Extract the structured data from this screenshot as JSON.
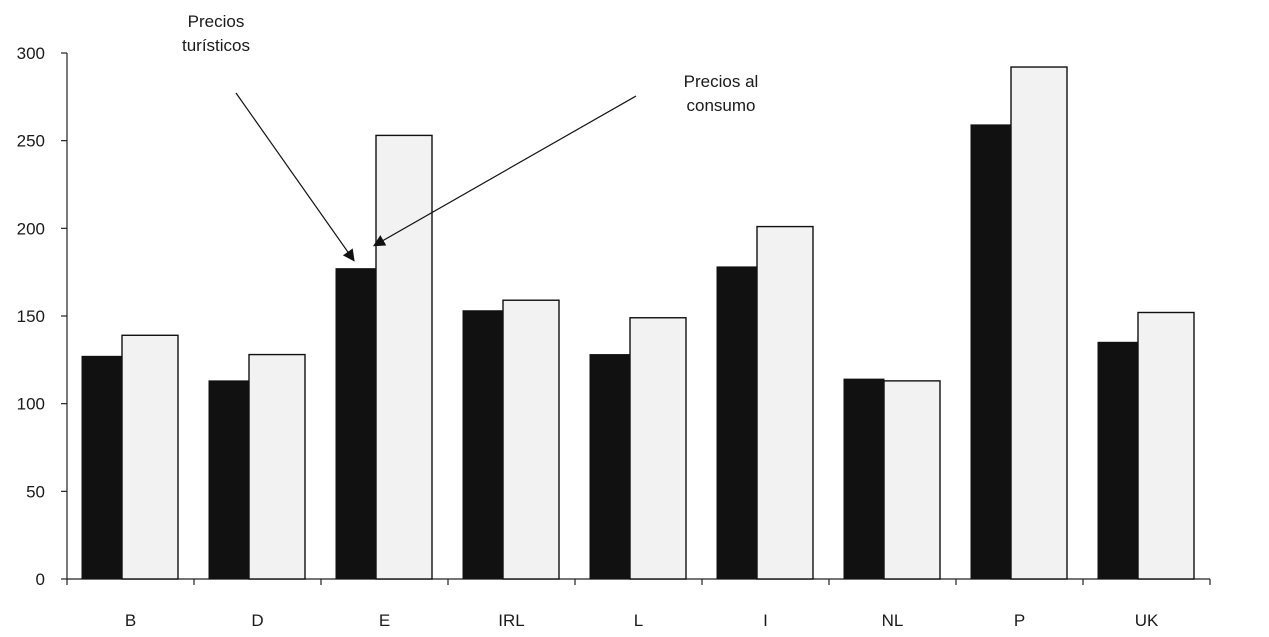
{
  "chart_data": {
    "type": "bar",
    "title": "",
    "xlabel": "",
    "ylabel": "",
    "ylim": [
      0,
      300
    ],
    "yticks": [
      0,
      50,
      100,
      150,
      200,
      250,
      300
    ],
    "categories": [
      "B",
      "D",
      "E",
      "IRL",
      "L",
      "I",
      "NL",
      "P",
      "UK"
    ],
    "series": [
      {
        "name": "Precios turísticos",
        "color": "#111111",
        "values": [
          127,
          113,
          177,
          153,
          128,
          178,
          114,
          259,
          135
        ]
      },
      {
        "name": "Precios al consumo",
        "color": "#f2f2f2",
        "values": [
          139,
          128,
          253,
          159,
          149,
          201,
          113,
          292,
          152
        ]
      }
    ],
    "grid": false,
    "legend": "none",
    "annotations": [
      {
        "text_lines": [
          "Precios",
          "turísticos"
        ],
        "points_to_category": "E",
        "points_to_series": 0
      },
      {
        "text_lines": [
          "Precios al",
          "consumo"
        ],
        "points_to_category": "E",
        "points_to_series": 1
      }
    ]
  }
}
